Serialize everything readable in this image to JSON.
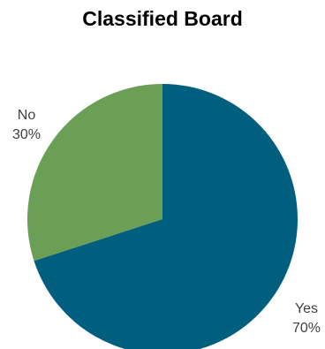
{
  "chart_data": {
    "type": "pie",
    "title": "Classified Board",
    "categories": [
      "Yes",
      "No"
    ],
    "values": [
      70,
      30
    ],
    "value_labels": [
      "70%",
      "30%"
    ],
    "colors": [
      "#005f7f",
      "#6a9f55"
    ],
    "start_angle_deg": 0,
    "direction": "clockwise",
    "legend": "none"
  }
}
